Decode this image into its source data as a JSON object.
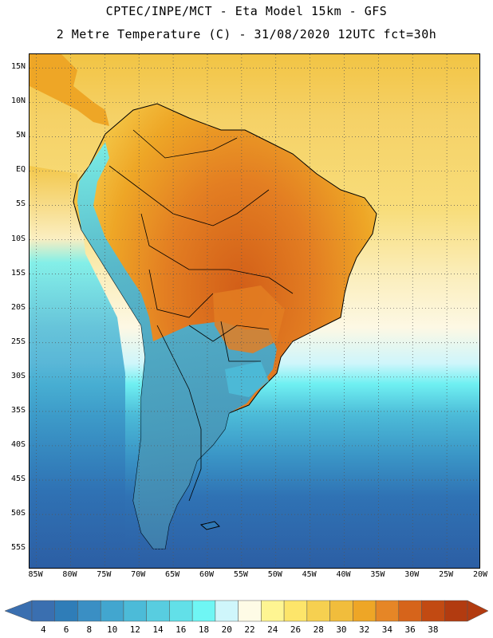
{
  "header": {
    "line1": "CPTEC/INPE/MCT -  Eta Model 15km - GFS",
    "line2": "2 Metre Temperature (C) - 31/08/2020 12UTC fct=30h"
  },
  "map": {
    "lat_ticks": [
      "15N",
      "10N",
      "5N",
      "EQ",
      "5S",
      "10S",
      "15S",
      "20S",
      "25S",
      "30S",
      "35S",
      "40S",
      "45S",
      "50S",
      "55S"
    ],
    "lat_values": [
      15,
      10,
      5,
      0,
      -5,
      -10,
      -15,
      -20,
      -25,
      -30,
      -35,
      -40,
      -45,
      -50,
      -55
    ],
    "lon_ticks": [
      "85W",
      "80W",
      "75W",
      "70W",
      "65W",
      "60W",
      "55W",
      "50W",
      "45W",
      "40W",
      "35W",
      "30W",
      "25W",
      "20W"
    ],
    "lon_values": [
      -85,
      -80,
      -75,
      -70,
      -65,
      -60,
      -55,
      -50,
      -45,
      -40,
      -35,
      -30,
      -25,
      -20
    ],
    "extent": {
      "lon_min": -86,
      "lon_max": -20,
      "lat_min": -58,
      "lat_max": 17
    },
    "gridlines": "dotted"
  },
  "colorbar": {
    "levels": [
      "4",
      "6",
      "8",
      "10",
      "12",
      "14",
      "16",
      "18",
      "20",
      "22",
      "24",
      "26",
      "28",
      "30",
      "32",
      "34",
      "36",
      "38"
    ],
    "colors": [
      "#3a6fb0",
      "#2f7db8",
      "#3a8fc4",
      "#42a6cf",
      "#4cbbd8",
      "#58cde0",
      "#62e0e8",
      "#6ff6f4",
      "#cff6fb",
      "#fefbe6",
      "#fef592",
      "#fde56a",
      "#f6d050",
      "#f1bd3c",
      "#eea626",
      "#e68626",
      "#d6641b",
      "#c24a12",
      "#b23b10"
    ],
    "unit": "C"
  },
  "colors": {
    "sea_warm": "#f3c748",
    "sea_mid": "#f8e7a0",
    "sea_cool": "#cff6fb",
    "sea_cold": "#4cbbd8",
    "sea_coldest": "#2e62a6",
    "land_hot": "#d6641b",
    "land_warm": "#eea626",
    "land_cold": "#58cde0"
  }
}
